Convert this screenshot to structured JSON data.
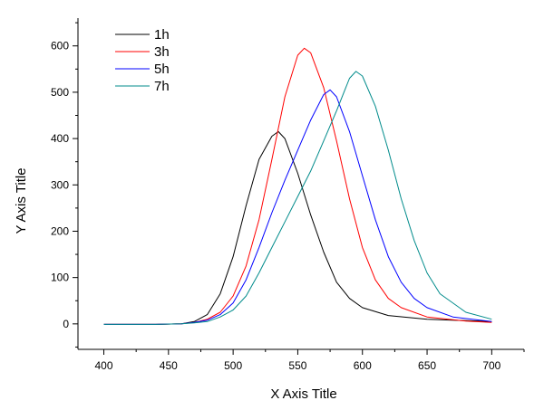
{
  "chart_data": {
    "type": "line",
    "title": "",
    "xlabel": "X Axis Title",
    "ylabel": "Y Axis Title",
    "xlim": [
      380,
      725
    ],
    "ylim": [
      -55,
      660
    ],
    "x_ticks": [
      400,
      450,
      500,
      550,
      600,
      650,
      700
    ],
    "y_ticks": [
      0,
      100,
      200,
      300,
      400,
      500,
      600
    ],
    "grid": false,
    "legend_position": "top-left",
    "series": [
      {
        "name": "1h",
        "color": "#000000",
        "x": [
          400,
          440,
          460,
          470,
          480,
          490,
          500,
          510,
          520,
          530,
          535,
          540,
          550,
          560,
          570,
          580,
          590,
          600,
          620,
          650,
          700
        ],
        "y": [
          -1,
          -1,
          0,
          5,
          20,
          65,
          145,
          255,
          355,
          405,
          415,
          400,
          325,
          235,
          155,
          90,
          55,
          35,
          18,
          10,
          5
        ]
      },
      {
        "name": "3h",
        "color": "#ff0000",
        "x": [
          400,
          440,
          460,
          470,
          480,
          490,
          500,
          510,
          520,
          530,
          540,
          550,
          555,
          560,
          570,
          580,
          590,
          600,
          610,
          620,
          630,
          650,
          680,
          700
        ],
        "y": [
          -1,
          -1,
          0,
          3,
          10,
          25,
          60,
          125,
          225,
          355,
          490,
          580,
          595,
          585,
          510,
          395,
          270,
          165,
          95,
          55,
          35,
          15,
          6,
          3
        ]
      },
      {
        "name": "5h",
        "color": "#0000ff",
        "x": [
          400,
          440,
          460,
          470,
          480,
          490,
          500,
          510,
          520,
          530,
          540,
          550,
          560,
          570,
          575,
          580,
          590,
          600,
          610,
          620,
          630,
          640,
          650,
          670,
          700
        ],
        "y": [
          -1,
          -1,
          0,
          3,
          8,
          20,
          45,
          95,
          165,
          240,
          310,
          375,
          440,
          495,
          505,
          490,
          415,
          320,
          225,
          145,
          90,
          55,
          35,
          15,
          5
        ]
      },
      {
        "name": "7h",
        "color": "#008b8b",
        "x": [
          400,
          440,
          460,
          470,
          480,
          490,
          500,
          510,
          520,
          530,
          540,
          550,
          560,
          570,
          580,
          590,
          595,
          600,
          610,
          620,
          630,
          640,
          650,
          660,
          680,
          700
        ],
        "y": [
          -1,
          -1,
          0,
          2,
          5,
          15,
          30,
          60,
          110,
          165,
          220,
          275,
          330,
          395,
          460,
          530,
          545,
          535,
          470,
          375,
          270,
          180,
          110,
          65,
          25,
          10
        ]
      }
    ]
  }
}
